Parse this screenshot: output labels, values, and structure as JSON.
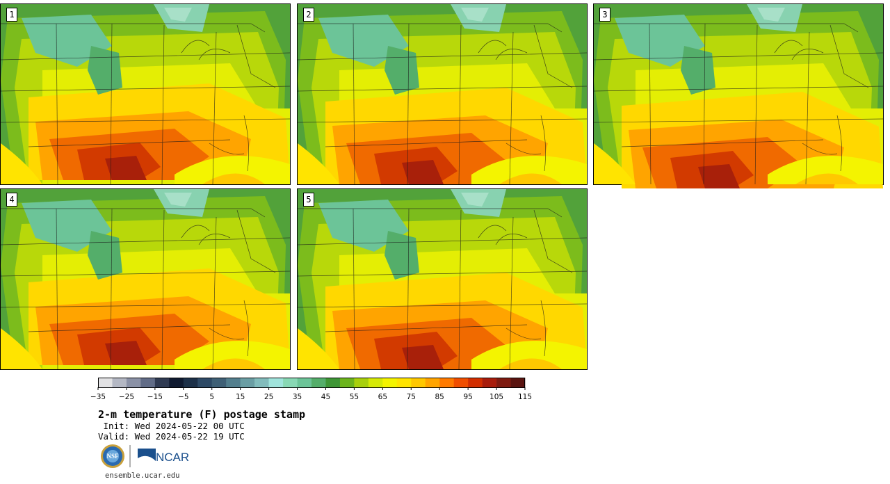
{
  "panels": [
    {
      "label": "1",
      "variant": 0
    },
    {
      "label": "2",
      "variant": 1
    },
    {
      "label": "3",
      "variant": 2
    },
    {
      "label": "4",
      "variant": 3
    },
    {
      "label": "5",
      "variant": 4
    }
  ],
  "colorbar": {
    "colors": [
      "#e2e2e4",
      "#b4b8c4",
      "#8a91a6",
      "#616c87",
      "#2f3a52",
      "#0f1a30",
      "#1c3048",
      "#2e4a66",
      "#3f6076",
      "#537f8e",
      "#6a9ea4",
      "#82bcbc",
      "#a0e4dc",
      "#88d8b4",
      "#6cc498",
      "#54ae6a",
      "#3e9636",
      "#6cb41c",
      "#a8d00c",
      "#d6ea06",
      "#f4f400",
      "#ffe400",
      "#ffc800",
      "#ffa400",
      "#ff7a00",
      "#f04e00",
      "#d22e00",
      "#a81c0c",
      "#7e1a10",
      "#5a1410"
    ],
    "tick_labels": [
      "−35",
      "−25",
      "−15",
      "−5",
      "5",
      "15",
      "25",
      "35",
      "45",
      "55",
      "65",
      "75",
      "85",
      "95",
      "105",
      "115"
    ]
  },
  "title": "2-m temperature (F) postage stamp",
  "init": " Init: Wed 2024-05-22 00 UTC",
  "valid": "Valid: Wed 2024-05-22 19 UTC",
  "logos": {
    "nsf": "NSF",
    "ncar": "NCAR"
  },
  "url": "ensemble.ucar.edu"
}
